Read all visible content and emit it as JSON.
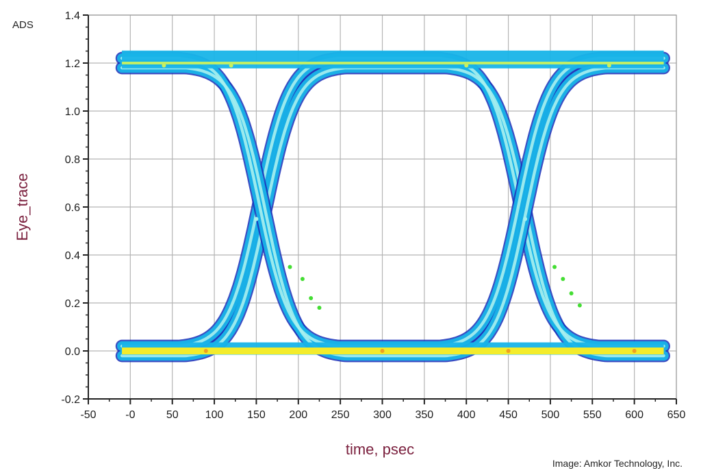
{
  "corner_label": "ADS",
  "credit": "Image: Amkor Technology, Inc.",
  "chart_data": {
    "type": "scatter",
    "title": "",
    "xlabel": "time, psec",
    "ylabel": "Eye_trace",
    "xlim": [
      -50,
      650
    ],
    "ylim": [
      -0.2,
      1.4
    ],
    "x_ticks": [
      -50,
      0,
      50,
      100,
      150,
      200,
      250,
      300,
      350,
      400,
      450,
      500,
      550,
      600,
      650
    ],
    "x_tick_labels": [
      "-50",
      "-0",
      "50",
      "100",
      "150",
      "200",
      "250",
      "300",
      "350",
      "400",
      "450",
      "500",
      "550",
      "600",
      "650"
    ],
    "y_ticks": [
      -0.2,
      0.0,
      0.2,
      0.4,
      0.6,
      0.8,
      1.0,
      1.2,
      1.4
    ],
    "y_tick_labels": [
      "-0.2",
      "0.0",
      "0.2",
      "0.4",
      "0.6",
      "0.8",
      "1.0",
      "1.2",
      "1.4"
    ],
    "grid": true,
    "eye_diagram": {
      "x_start": -10,
      "x_end": 635,
      "high_level": 1.2,
      "low_level": 0.0,
      "crossings": [
        {
          "x": 157,
          "y": 0.6
        },
        {
          "x": 467,
          "y": 0.6
        }
      ],
      "eye_width_ps": 310
    },
    "colors": {
      "band_main": "#18b4e8",
      "band_dark": "#1a2fb8",
      "band_light": "#a9f0ee",
      "level_high": "#c8f060",
      "level_low": "#ffee22",
      "accent_green": "#44dd33",
      "accent_orange": "#f0a020"
    }
  }
}
